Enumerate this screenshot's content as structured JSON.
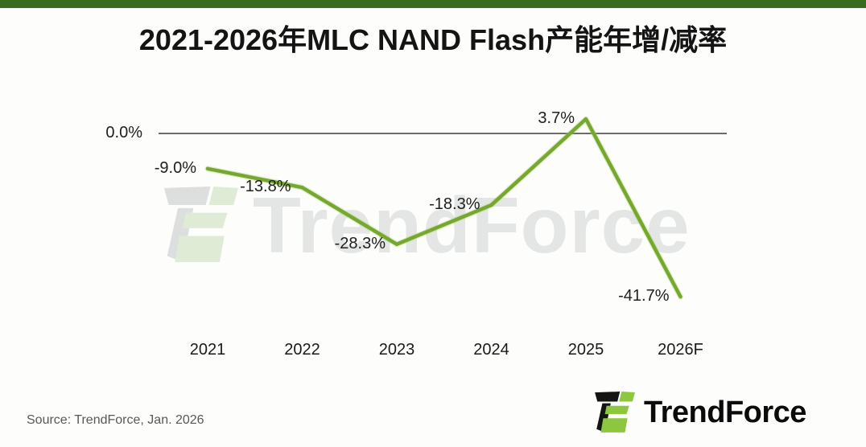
{
  "page": {
    "top_bar_color": "#3a6b1e",
    "background": "#fdfdfc"
  },
  "header": {
    "title": "2021-2026年MLC NAND Flash产能年增/减率"
  },
  "chart_data": {
    "type": "line",
    "title": "2021-2026年MLC NAND Flash产能年增/减率",
    "categories": [
      "2021",
      "2022",
      "2023",
      "2024",
      "2025",
      "2026F"
    ],
    "values": [
      -9.0,
      -13.8,
      -28.3,
      -18.3,
      3.7,
      -41.7
    ],
    "value_labels": [
      "-9.0%",
      "-13.8%",
      "-28.3%",
      "-18.3%",
      "3.7%",
      "-41.7%"
    ],
    "unit": "%",
    "xlabel": "",
    "ylabel": "",
    "baseline": {
      "value": 0,
      "label": "0.0%"
    },
    "ylim": [
      -45,
      8
    ],
    "grid": false,
    "legend": "none",
    "line_color": "#76a831",
    "line_glow_color": "#a9d15e",
    "baseline_color": "#3c3c3c",
    "label_color": "#202020"
  },
  "watermark": {
    "text": "TrendForce"
  },
  "footer": {
    "source": "Source: TrendForce, Jan. 2026",
    "brand": "TrendForce",
    "logo_green": "#8dc63f",
    "logo_black": "#141414"
  }
}
